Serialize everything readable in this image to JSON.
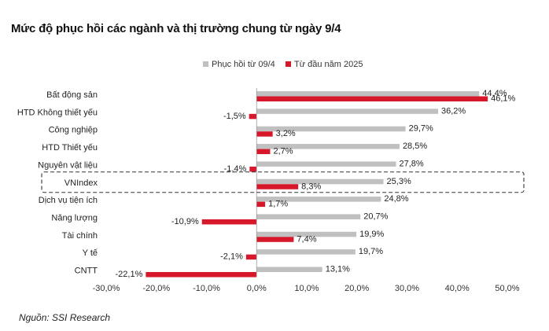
{
  "chart_data": {
    "type": "bar",
    "orientation": "horizontal",
    "title": "Mức độ phục hồi các ngành và thị trường chung từ ngày 9/4",
    "source": "Nguồn: SSI Research",
    "categories": [
      "Bất động sản",
      "HTD Không thiết yếu",
      "Công nghiệp",
      "HTD Thiết yếu",
      "Nguyên vật liệu",
      "VNIndex",
      "Dịch vụ tiện ích",
      "Năng lượng",
      "Tài chính",
      "Y tế",
      "CNTT"
    ],
    "series": [
      {
        "name": "Phục hồi từ 09/4",
        "color": "#c0c0c0",
        "values": [
          44.4,
          36.2,
          29.7,
          28.5,
          27.8,
          25.3,
          24.8,
          20.7,
          19.9,
          19.7,
          13.1
        ],
        "labels": [
          "44,4%",
          "36,2%",
          "29,7%",
          "28,5%",
          "27,8%",
          "25,3%",
          "24,8%",
          "20,7%",
          "19,9%",
          "19,7%",
          "13,1%"
        ]
      },
      {
        "name": "Từ đầu năm 2025",
        "color": "#d7182a",
        "values": [
          46.1,
          -1.5,
          3.2,
          2.7,
          -1.4,
          8.3,
          1.7,
          -10.9,
          7.4,
          -2.1,
          -22.1
        ],
        "labels": [
          "46,1%",
          "-1,5%",
          "3,2%",
          "2,7%",
          "-1,4%",
          "8,3%",
          "1,7%",
          "-10,9%",
          "7,4%",
          "-2,1%",
          "-22,1%"
        ]
      }
    ],
    "xlim": [
      -30,
      50
    ],
    "xticks": [
      -30,
      -20,
      -10,
      0,
      10,
      20,
      30,
      40,
      50
    ],
    "xtick_labels": [
      "-30,0%",
      "-20,0%",
      "-10,0%",
      "0,0%",
      "10,0%",
      "20,0%",
      "30,0%",
      "40,0%",
      "50,0%"
    ],
    "highlight_category": "VNIndex",
    "legend_position": "top-center",
    "grid": false
  }
}
